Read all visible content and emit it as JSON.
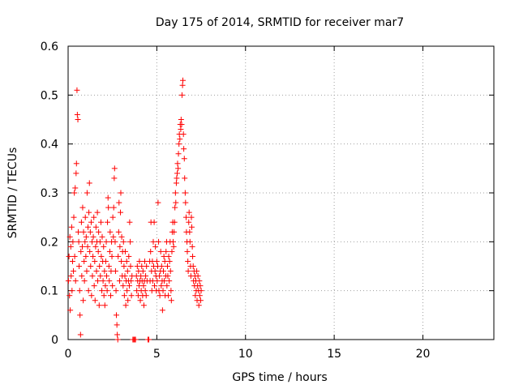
{
  "chart_data": {
    "type": "scatter",
    "title": "Day 175 of 2014, SRMTID for receiver mar7",
    "xlabel": "GPS time / hours",
    "ylabel": "SRMTID / TECUs",
    "xlim": [
      0,
      24
    ],
    "ylim": [
      0,
      0.6
    ],
    "xticks": [
      0,
      5,
      10,
      15,
      20
    ],
    "yticks": [
      0,
      0.1,
      0.2,
      0.3,
      0.4,
      0.5,
      0.6
    ],
    "ytick_labels": [
      "0",
      "0.1",
      "0.2",
      "0.3",
      "0.4",
      "0.5",
      "0.6"
    ],
    "grid": true,
    "marker": "+",
    "color": "#ff0000",
    "series": [
      {
        "name": "SRMTID",
        "points": [
          [
            0.02,
            0.12
          ],
          [
            0.05,
            0.17
          ],
          [
            0.08,
            0.09
          ],
          [
            0.1,
            0.21
          ],
          [
            0.12,
            0.06
          ],
          [
            0.15,
            0.19
          ],
          [
            0.17,
            0.13
          ],
          [
            0.2,
            0.23
          ],
          [
            0.22,
            0.1
          ],
          [
            0.25,
            0.16
          ],
          [
            0.27,
            0.2
          ],
          [
            0.3,
            0.14
          ],
          [
            0.32,
            0.25
          ],
          [
            0.35,
            0.3
          ],
          [
            0.37,
            0.17
          ],
          [
            0.4,
            0.31
          ],
          [
            0.42,
            0.12
          ],
          [
            0.45,
            0.34
          ],
          [
            0.47,
            0.36
          ],
          [
            0.5,
            0.51
          ],
          [
            0.52,
            0.46
          ],
          [
            0.55,
            0.45
          ],
          [
            0.57,
            0.22
          ],
          [
            0.6,
            0.2
          ],
          [
            0.62,
            0.15
          ],
          [
            0.65,
            0.1
          ],
          [
            0.67,
            0.05
          ],
          [
            0.7,
            0.01
          ],
          [
            0.72,
            0.18
          ],
          [
            0.75,
            0.24
          ],
          [
            0.77,
            0.13
          ],
          [
            0.8,
            0.19
          ],
          [
            0.82,
            0.27
          ],
          [
            0.85,
            0.08
          ],
          [
            0.87,
            0.22
          ],
          [
            0.9,
            0.16
          ],
          [
            0.92,
            0.12
          ],
          [
            0.95,
            0.2
          ],
          [
            0.97,
            0.25
          ],
          [
            1.0,
            0.17
          ],
          [
            1.02,
            0.21
          ],
          [
            1.05,
            0.14
          ],
          [
            1.07,
            0.3
          ],
          [
            1.1,
            0.19
          ],
          [
            1.12,
            0.23
          ],
          [
            1.15,
            0.1
          ],
          [
            1.17,
            0.26
          ],
          [
            1.2,
            0.32
          ],
          [
            1.22,
            0.18
          ],
          [
            1.25,
            0.22
          ],
          [
            1.27,
            0.15
          ],
          [
            1.3,
            0.24
          ],
          [
            1.32,
            0.09
          ],
          [
            1.35,
            0.2
          ],
          [
            1.37,
            0.13
          ],
          [
            1.4,
            0.17
          ],
          [
            1.42,
            0.21
          ],
          [
            1.45,
            0.25
          ],
          [
            1.47,
            0.11
          ],
          [
            1.5,
            0.16
          ],
          [
            1.52,
            0.08
          ],
          [
            1.55,
            0.19
          ],
          [
            1.57,
            0.23
          ],
          [
            1.6,
            0.14
          ],
          [
            1.62,
            0.2
          ],
          [
            1.65,
            0.26
          ],
          [
            1.67,
            0.12
          ],
          [
            1.7,
            0.18
          ],
          [
            1.72,
            0.22
          ],
          [
            1.75,
            0.07
          ],
          [
            1.77,
            0.15
          ],
          [
            1.8,
            0.2
          ],
          [
            1.82,
            0.13
          ],
          [
            1.85,
            0.24
          ],
          [
            1.87,
            0.17
          ],
          [
            1.9,
            0.1
          ],
          [
            1.92,
            0.21
          ],
          [
            1.95,
            0.16
          ],
          [
            1.97,
            0.12
          ],
          [
            2.0,
            0.19
          ],
          [
            2.02,
            0.09
          ],
          [
            2.05,
            0.14
          ],
          [
            2.07,
            0.07
          ],
          [
            2.1,
            0.11
          ],
          [
            2.12,
            0.16
          ],
          [
            2.15,
            0.2
          ],
          [
            2.17,
            0.13
          ],
          [
            2.2,
            0.1
          ],
          [
            2.22,
            0.24
          ],
          [
            2.25,
            0.29
          ],
          [
            2.27,
            0.27
          ],
          [
            2.3,
            0.15
          ],
          [
            2.32,
            0.12
          ],
          [
            2.35,
            0.18
          ],
          [
            2.37,
            0.22
          ],
          [
            2.4,
            0.09
          ],
          [
            2.42,
            0.14
          ],
          [
            2.45,
            0.2
          ],
          [
            2.47,
            0.17
          ],
          [
            2.5,
            0.11
          ],
          [
            2.52,
            0.25
          ],
          [
            2.55,
            0.21
          ],
          [
            2.57,
            0.27
          ],
          [
            2.6,
            0.33
          ],
          [
            2.62,
            0.35
          ],
          [
            2.65,
            0.2
          ],
          [
            2.67,
            0.14
          ],
          [
            2.7,
            0.1
          ],
          [
            2.72,
            0.05
          ],
          [
            2.75,
            0.03
          ],
          [
            2.77,
            0.01
          ],
          [
            2.8,
            0.0
          ],
          [
            2.82,
            0.17
          ],
          [
            2.85,
            0.22
          ],
          [
            2.87,
            0.28
          ],
          [
            2.9,
            0.12
          ],
          [
            2.92,
            0.19
          ],
          [
            2.95,
            0.26
          ],
          [
            2.97,
            0.3
          ],
          [
            3.0,
            0.16
          ],
          [
            3.02,
            0.21
          ],
          [
            3.05,
            0.13
          ],
          [
            3.07,
            0.18
          ],
          [
            3.1,
            0.11
          ],
          [
            3.12,
            0.2
          ],
          [
            3.15,
            0.15
          ],
          [
            3.17,
            0.09
          ],
          [
            3.2,
            0.13
          ],
          [
            3.22,
            0.18
          ],
          [
            3.25,
            0.07
          ],
          [
            3.27,
            0.12
          ],
          [
            3.3,
            0.16
          ],
          [
            3.32,
            0.1
          ],
          [
            3.35,
            0.14
          ],
          [
            3.37,
            0.08
          ],
          [
            3.4,
            0.12
          ],
          [
            3.42,
            0.17
          ],
          [
            3.45,
            0.11
          ],
          [
            3.47,
            0.24
          ],
          [
            3.5,
            0.2
          ],
          [
            3.52,
            0.15
          ],
          [
            3.55,
            0.12
          ],
          [
            3.57,
            0.09
          ],
          [
            3.6,
            0.13
          ],
          [
            3.65,
            0.0
          ],
          [
            3.7,
            0.0
          ],
          [
            3.75,
            0.0
          ],
          [
            3.8,
            0.0
          ],
          [
            3.85,
            0.13
          ],
          [
            3.87,
            0.1
          ],
          [
            3.9,
            0.15
          ],
          [
            3.92,
            0.12
          ],
          [
            3.95,
            0.09
          ],
          [
            3.97,
            0.14
          ],
          [
            4.0,
            0.11
          ],
          [
            4.02,
            0.16
          ],
          [
            4.05,
            0.12
          ],
          [
            4.07,
            0.08
          ],
          [
            4.1,
            0.13
          ],
          [
            4.12,
            0.1
          ],
          [
            4.15,
            0.15
          ],
          [
            4.17,
            0.12
          ],
          [
            4.2,
            0.09
          ],
          [
            4.22,
            0.14
          ],
          [
            4.25,
            0.11
          ],
          [
            4.27,
            0.07
          ],
          [
            4.3,
            0.12
          ],
          [
            4.32,
            0.16
          ],
          [
            4.35,
            0.1
          ],
          [
            4.37,
            0.13
          ],
          [
            4.4,
            0.09
          ],
          [
            4.42,
            0.15
          ],
          [
            4.45,
            0.12
          ],
          [
            4.5,
            0.0
          ],
          [
            4.55,
            0.0
          ],
          [
            4.6,
            0.16
          ],
          [
            4.62,
            0.12
          ],
          [
            4.65,
            0.18
          ],
          [
            4.67,
            0.24
          ],
          [
            4.7,
            0.14
          ],
          [
            4.72,
            0.1
          ],
          [
            4.75,
            0.16
          ],
          [
            4.77,
            0.12
          ],
          [
            4.8,
            0.2
          ],
          [
            4.82,
            0.15
          ],
          [
            4.85,
            0.24
          ],
          [
            4.87,
            0.11
          ],
          [
            4.9,
            0.14
          ],
          [
            4.92,
            0.19
          ],
          [
            4.95,
            0.13
          ],
          [
            4.97,
            0.1
          ],
          [
            5.0,
            0.16
          ],
          [
            5.02,
            0.12
          ],
          [
            5.05,
            0.15
          ],
          [
            5.07,
            0.28
          ],
          [
            5.1,
            0.2
          ],
          [
            5.12,
            0.1
          ],
          [
            5.15,
            0.13
          ],
          [
            5.17,
            0.09
          ],
          [
            5.2,
            0.14
          ],
          [
            5.22,
            0.18
          ],
          [
            5.25,
            0.11
          ],
          [
            5.27,
            0.15
          ],
          [
            5.3,
            0.12
          ],
          [
            5.32,
            0.06
          ],
          [
            5.35,
            0.1
          ],
          [
            5.37,
            0.14
          ],
          [
            5.4,
            0.17
          ],
          [
            5.42,
            0.12
          ],
          [
            5.45,
            0.16
          ],
          [
            5.47,
            0.09
          ],
          [
            5.5,
            0.13
          ],
          [
            5.52,
            0.18
          ],
          [
            5.55,
            0.2
          ],
          [
            5.57,
            0.11
          ],
          [
            5.6,
            0.15
          ],
          [
            5.62,
            0.13
          ],
          [
            5.65,
            0.09
          ],
          [
            5.67,
            0.17
          ],
          [
            5.7,
            0.12
          ],
          [
            5.72,
            0.16
          ],
          [
            5.75,
            0.2
          ],
          [
            5.77,
            0.14
          ],
          [
            5.8,
            0.1
          ],
          [
            5.82,
            0.08
          ],
          [
            5.85,
            0.18
          ],
          [
            5.87,
            0.22
          ],
          [
            5.9,
            0.24
          ],
          [
            5.92,
            0.2
          ],
          [
            5.95,
            0.19
          ],
          [
            5.97,
            0.22
          ],
          [
            6.0,
            0.24
          ],
          [
            6.02,
            0.27
          ],
          [
            6.05,
            0.3
          ],
          [
            6.07,
            0.28
          ],
          [
            6.1,
            0.32
          ],
          [
            6.12,
            0.33
          ],
          [
            6.15,
            0.34
          ],
          [
            6.17,
            0.36
          ],
          [
            6.2,
            0.35
          ],
          [
            6.22,
            0.38
          ],
          [
            6.25,
            0.4
          ],
          [
            6.27,
            0.42
          ],
          [
            6.3,
            0.41
          ],
          [
            6.32,
            0.44
          ],
          [
            6.35,
            0.43
          ],
          [
            6.37,
            0.45
          ],
          [
            6.4,
            0.44
          ],
          [
            6.42,
            0.5
          ],
          [
            6.45,
            0.52
          ],
          [
            6.47,
            0.53
          ],
          [
            6.5,
            0.42
          ],
          [
            6.52,
            0.39
          ],
          [
            6.55,
            0.37
          ],
          [
            6.57,
            0.33
          ],
          [
            6.6,
            0.3
          ],
          [
            6.62,
            0.28
          ],
          [
            6.65,
            0.25
          ],
          [
            6.67,
            0.22
          ],
          [
            6.7,
            0.2
          ],
          [
            6.72,
            0.18
          ],
          [
            6.75,
            0.16
          ],
          [
            6.77,
            0.14
          ],
          [
            6.8,
            0.24
          ],
          [
            6.82,
            0.26
          ],
          [
            6.85,
            0.22
          ],
          [
            6.87,
            0.2
          ],
          [
            6.9,
            0.15
          ],
          [
            6.92,
            0.13
          ],
          [
            6.95,
            0.25
          ],
          [
            6.97,
            0.23
          ],
          [
            7.0,
            0.19
          ],
          [
            7.02,
            0.17
          ],
          [
            7.05,
            0.15
          ],
          [
            7.07,
            0.12
          ],
          [
            7.1,
            0.14
          ],
          [
            7.12,
            0.11
          ],
          [
            7.15,
            0.13
          ],
          [
            7.17,
            0.09
          ],
          [
            7.2,
            0.12
          ],
          [
            7.22,
            0.1
          ],
          [
            7.25,
            0.14
          ],
          [
            7.27,
            0.08
          ],
          [
            7.3,
            0.11
          ],
          [
            7.32,
            0.13
          ],
          [
            7.35,
            0.1
          ],
          [
            7.37,
            0.07
          ],
          [
            7.4,
            0.12
          ],
          [
            7.42,
            0.09
          ],
          [
            7.45,
            0.11
          ],
          [
            7.47,
            0.08
          ],
          [
            7.5,
            0.1
          ]
        ]
      }
    ]
  }
}
